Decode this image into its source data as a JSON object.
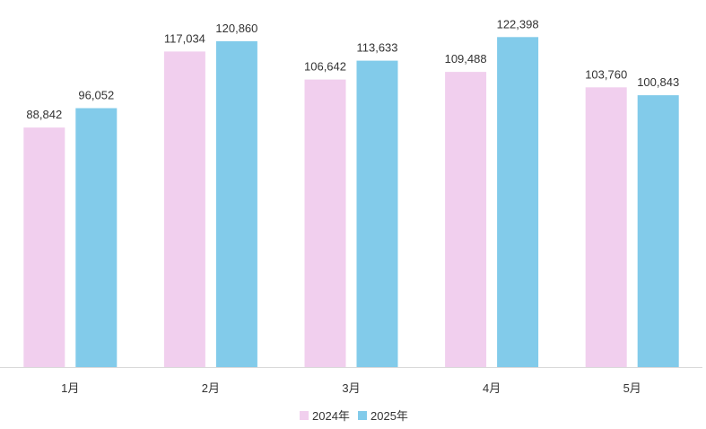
{
  "chart_data": {
    "type": "bar",
    "categories": [
      "1月",
      "2月",
      "3月",
      "4月",
      "5月"
    ],
    "series": [
      {
        "name": "2024年",
        "values": [
          88842,
          117034,
          106642,
          109488,
          103760
        ],
        "labels": [
          "88,842",
          "117,034",
          "106,642",
          "109,488",
          "103,760"
        ],
        "color": "#f1cfee"
      },
      {
        "name": "2025年",
        "values": [
          96052,
          120860,
          113633,
          122398,
          100843
        ],
        "labels": [
          "96,052",
          "120,860",
          "113,633",
          "122,398",
          "100,843"
        ],
        "color": "#82cbea"
      }
    ],
    "title": "",
    "xlabel": "",
    "ylabel": "",
    "ylim": [
      0,
      123500
    ],
    "grid": false,
    "legend": "bottom-center"
  }
}
